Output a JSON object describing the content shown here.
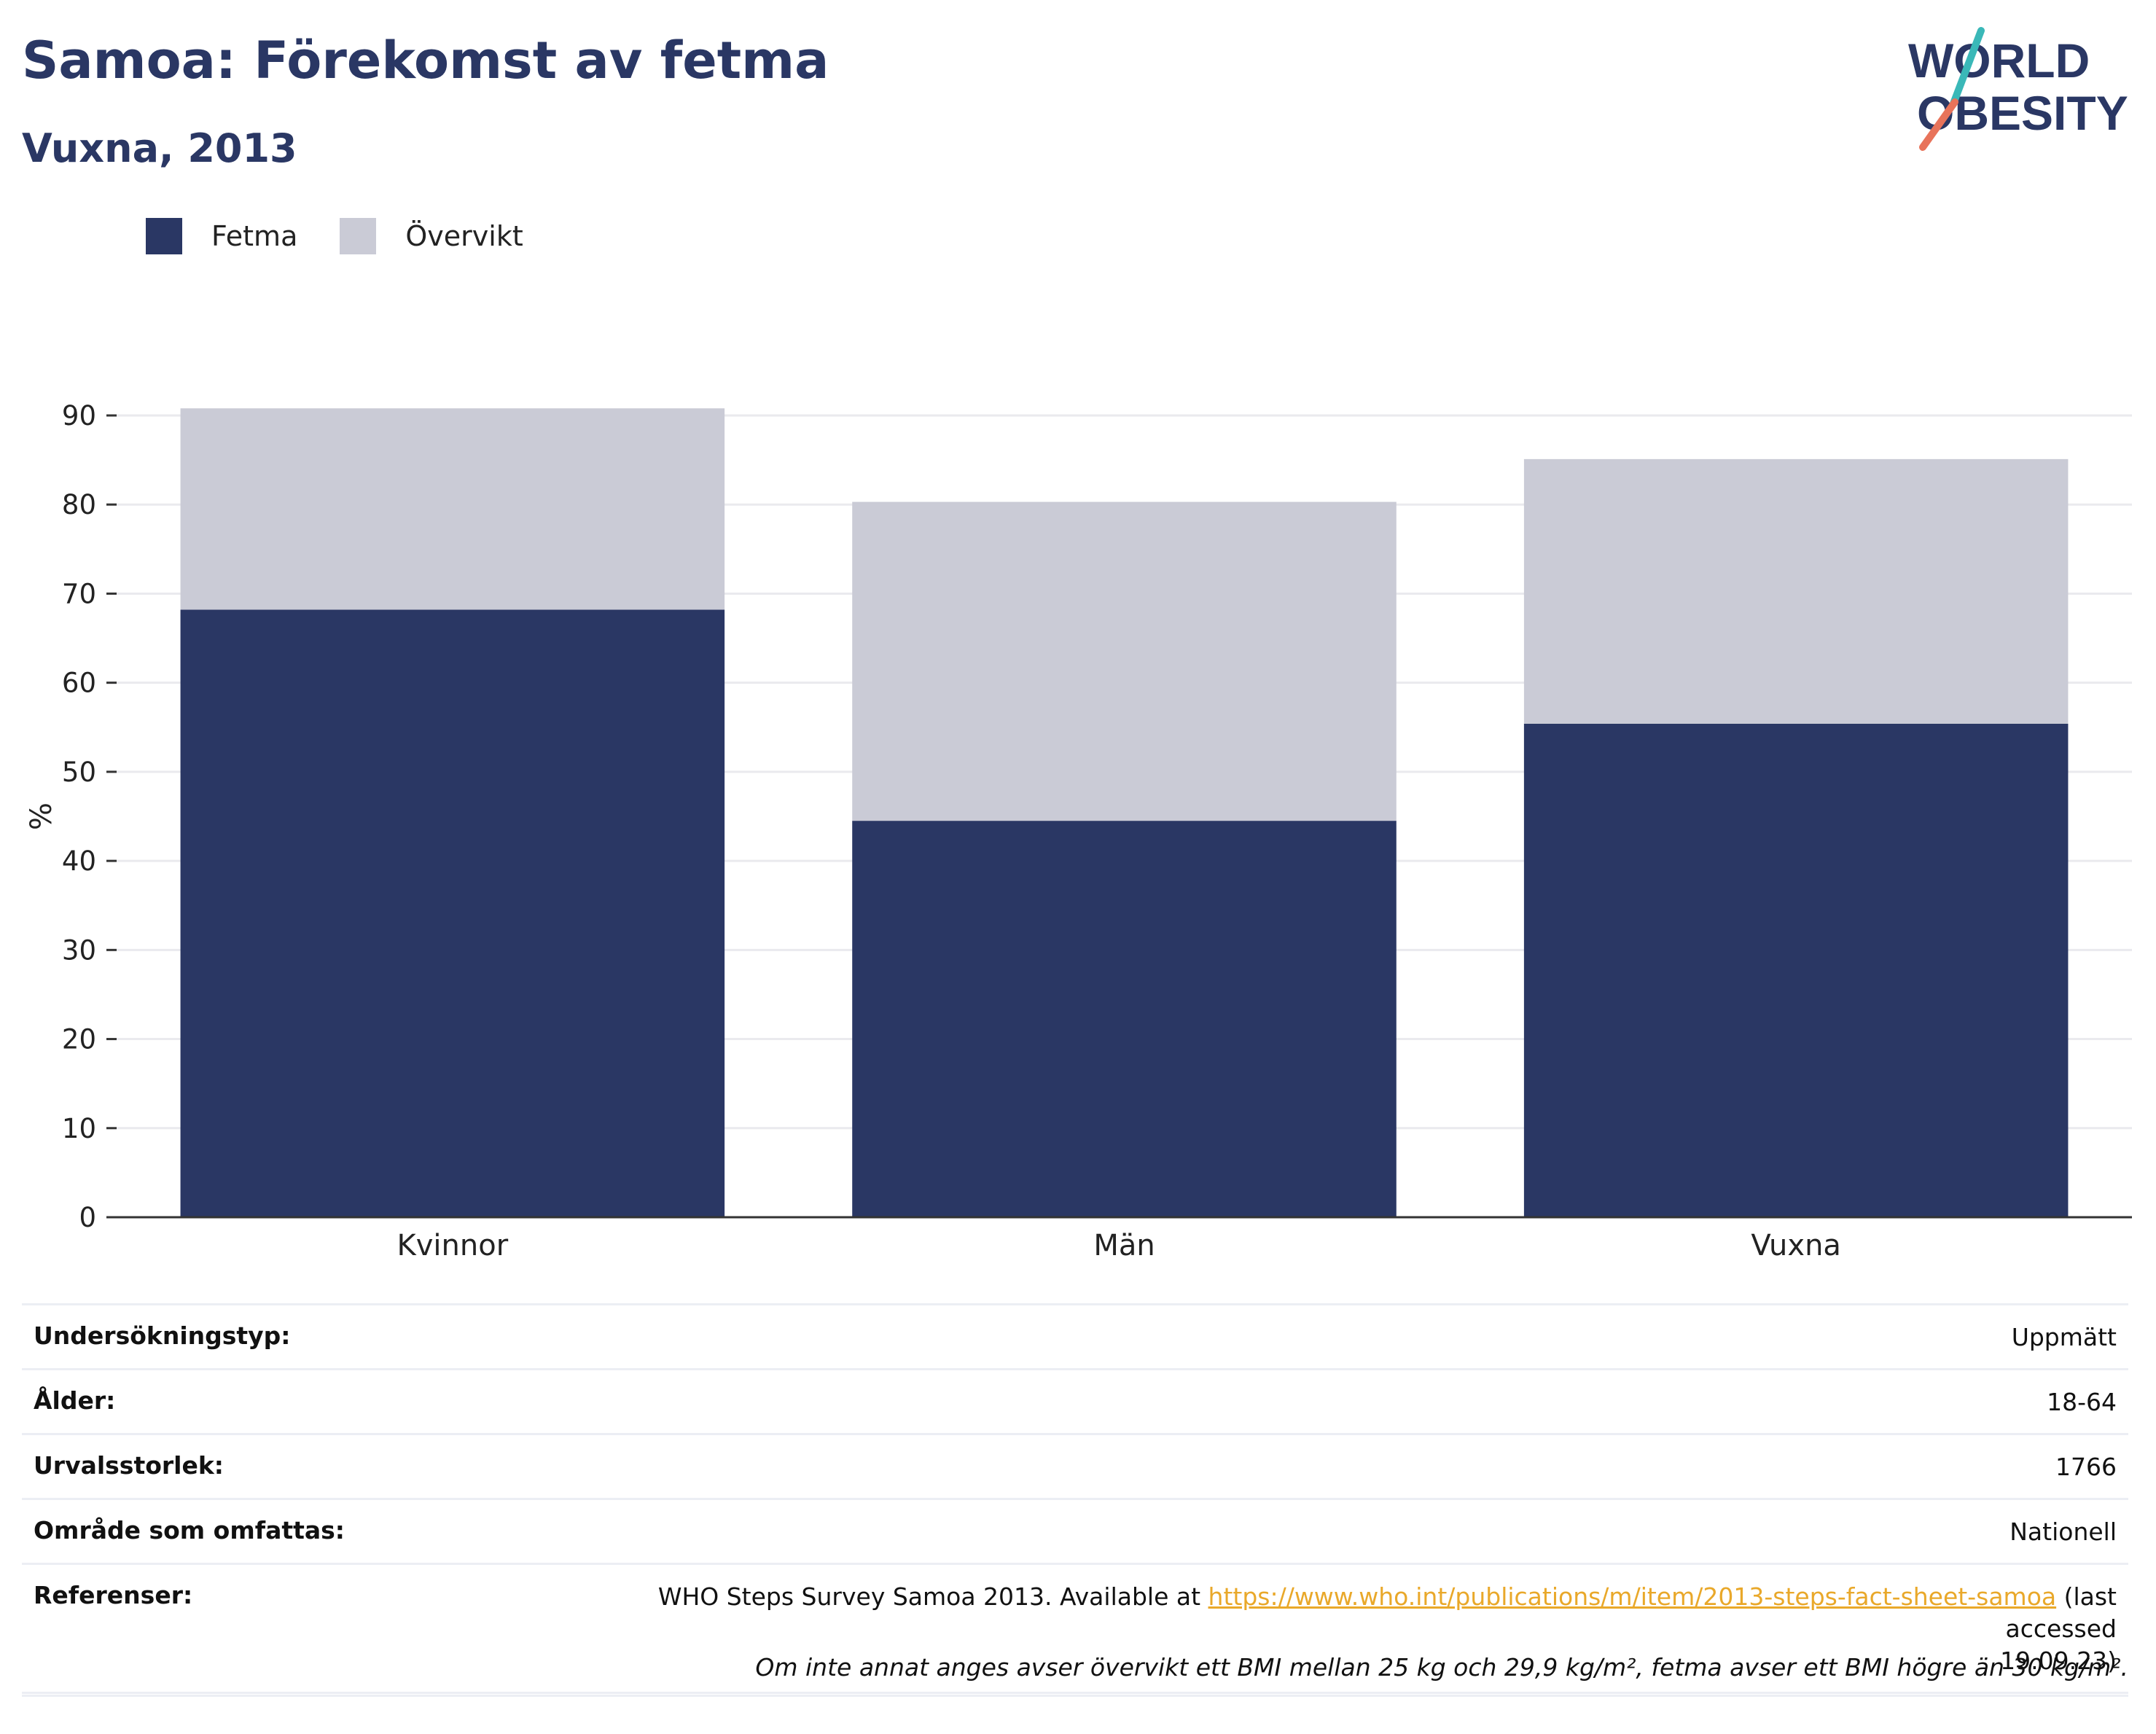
{
  "header": {
    "title": "Samoa: Förekomst av fetma",
    "subtitle": "Vuxna, 2013"
  },
  "logo": {
    "line1": "WORLD",
    "line2": "OBESITY",
    "accent_colors": [
      "#3ab8b8",
      "#e8735a"
    ]
  },
  "legend": [
    {
      "label": "Fetma",
      "color": "#2a3764"
    },
    {
      "label": "Övervikt",
      "color": "#cacbd6"
    }
  ],
  "chart_data": {
    "type": "bar",
    "stacked": true,
    "categories": [
      "Kvinnor",
      "Män",
      "Vuxna"
    ],
    "series": [
      {
        "name": "Fetma",
        "values": [
          68.2,
          44.5,
          55.4
        ],
        "color": "#2a3764"
      },
      {
        "name": "Övervikt",
        "values": [
          22.6,
          35.8,
          29.7
        ],
        "color": "#cacbd6"
      }
    ],
    "ylabel": "%",
    "ylim": [
      0,
      90
    ],
    "yticks": [
      0,
      10,
      20,
      30,
      40,
      50,
      60,
      70,
      80,
      90
    ],
    "grid": true,
    "legend_position": "top-left"
  },
  "info": {
    "rows": [
      {
        "key": "Undersökningstyp:",
        "value": "Uppmätt"
      },
      {
        "key": "Ålder:",
        "value": "18-64"
      },
      {
        "key": "Urvalsstorlek:",
        "value": "1766"
      },
      {
        "key": "Område som omfattas:",
        "value": "Nationell"
      }
    ],
    "references": {
      "key": "Referenser:",
      "prefix": "WHO Steps Survey Samoa 2013. Available at ",
      "link": "https://www.who.int/publications/m/item/2013-steps-fact-sheet-samoa",
      "suffix_1": " (last accessed",
      "suffix_2": "19.09.23)"
    },
    "note": "Om inte annat anges avser övervikt ett BMI mellan 25 kg och 29,9 kg/m², fetma avser ett BMI högre än 30 kg/m²."
  }
}
